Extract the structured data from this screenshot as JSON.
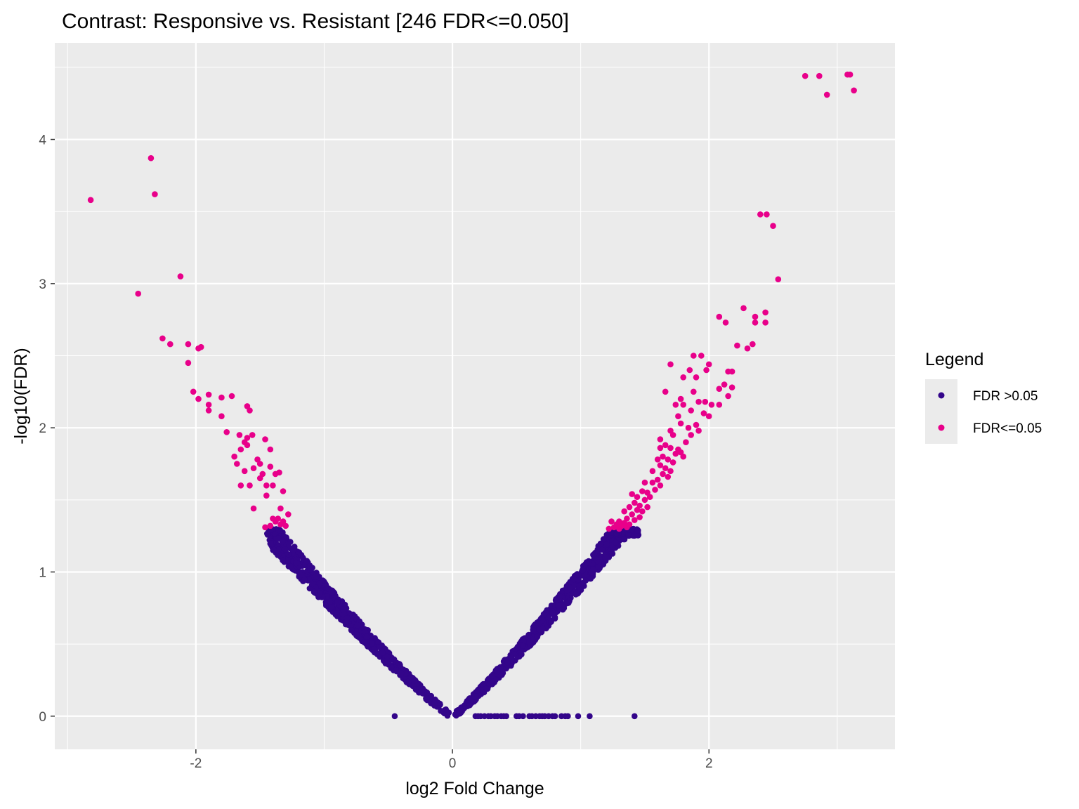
{
  "chart_data": {
    "type": "scatter",
    "title": "Contrast: Responsive vs. Resistant  [246 FDR<=0.050]",
    "xlabel": "log2 Fold Change",
    "ylabel": "-log10(FDR)",
    "xlim": [
      -3.1,
      3.45
    ],
    "ylim": [
      -0.23,
      4.67
    ],
    "x_ticks": [
      -2,
      0,
      2
    ],
    "x_tick_labels": [
      "-2",
      "0",
      "2"
    ],
    "y_ticks": [
      0,
      1,
      2,
      3,
      4
    ],
    "y_tick_labels": [
      "0",
      "1",
      "2",
      "3",
      "4"
    ],
    "grid": true,
    "legend": {
      "title": "Legend",
      "position": "right",
      "entries": [
        {
          "label": "FDR >0.05",
          "color": "#33058a"
        },
        {
          "label": "FDR<=0.05",
          "color": "#e8008a"
        }
      ]
    },
    "series": [
      {
        "name": "FDR >0.05",
        "color": "#33058a",
        "curve": {
          "description": "non-significant genes forming the lower V; y approx proportional to |x|^1.15, jittered",
          "left_x_range": [
            -1.45,
            -0.02
          ],
          "right_x_range": [
            0.02,
            1.45
          ],
          "y_max": 1.3
        },
        "points": [
          {
            "x": -0.45,
            "y": 0
          },
          {
            "x": 0.18,
            "y": 0
          },
          {
            "x": 0.2,
            "y": 0
          },
          {
            "x": 0.22,
            "y": 0
          },
          {
            "x": 0.25,
            "y": 0
          },
          {
            "x": 0.28,
            "y": 0
          },
          {
            "x": 0.3,
            "y": 0
          },
          {
            "x": 0.33,
            "y": 0
          },
          {
            "x": 0.35,
            "y": 0
          },
          {
            "x": 0.38,
            "y": 0
          },
          {
            "x": 0.4,
            "y": 0
          },
          {
            "x": 0.42,
            "y": 0
          },
          {
            "x": 0.5,
            "y": 0
          },
          {
            "x": 0.52,
            "y": 0
          },
          {
            "x": 0.55,
            "y": 0
          },
          {
            "x": 0.6,
            "y": 0
          },
          {
            "x": 0.62,
            "y": 0
          },
          {
            "x": 0.65,
            "y": 0
          },
          {
            "x": 0.68,
            "y": 0
          },
          {
            "x": 0.7,
            "y": 0
          },
          {
            "x": 0.72,
            "y": 0
          },
          {
            "x": 0.75,
            "y": 0
          },
          {
            "x": 0.78,
            "y": 0
          },
          {
            "x": 0.8,
            "y": 0
          },
          {
            "x": 0.85,
            "y": 0
          },
          {
            "x": 0.88,
            "y": 0
          },
          {
            "x": 0.9,
            "y": 0
          },
          {
            "x": 0.98,
            "y": 0
          },
          {
            "x": 1.07,
            "y": 0
          },
          {
            "x": 1.42,
            "y": 0
          }
        ]
      },
      {
        "name": "FDR<=0.05",
        "color": "#e8008a",
        "points": [
          {
            "x": -2.82,
            "y": 3.58
          },
          {
            "x": -2.35,
            "y": 3.87
          },
          {
            "x": -2.32,
            "y": 3.62
          },
          {
            "x": -2.12,
            "y": 3.05
          },
          {
            "x": -2.45,
            "y": 2.93
          },
          {
            "x": -2.26,
            "y": 2.62
          },
          {
            "x": -2.2,
            "y": 2.58
          },
          {
            "x": -2.06,
            "y": 2.58
          },
          {
            "x": -1.98,
            "y": 2.55
          },
          {
            "x": -1.96,
            "y": 2.56
          },
          {
            "x": -2.06,
            "y": 2.45
          },
          {
            "x": -2.02,
            "y": 2.25
          },
          {
            "x": -1.98,
            "y": 2.2
          },
          {
            "x": -1.9,
            "y": 2.23
          },
          {
            "x": -1.9,
            "y": 2.16
          },
          {
            "x": -1.9,
            "y": 2.12
          },
          {
            "x": -1.8,
            "y": 2.21
          },
          {
            "x": -1.8,
            "y": 2.08
          },
          {
            "x": -1.72,
            "y": 2.22
          },
          {
            "x": -1.6,
            "y": 2.15
          },
          {
            "x": -1.58,
            "y": 2.12
          },
          {
            "x": -1.76,
            "y": 1.97
          },
          {
            "x": -1.66,
            "y": 1.95
          },
          {
            "x": -1.62,
            "y": 1.9
          },
          {
            "x": -1.6,
            "y": 1.93
          },
          {
            "x": -1.56,
            "y": 1.95
          },
          {
            "x": -1.65,
            "y": 1.85
          },
          {
            "x": -1.6,
            "y": 1.88
          },
          {
            "x": -1.52,
            "y": 1.78
          },
          {
            "x": -1.46,
            "y": 1.92
          },
          {
            "x": -1.42,
            "y": 1.85
          },
          {
            "x": -1.7,
            "y": 1.8
          },
          {
            "x": -1.68,
            "y": 1.75
          },
          {
            "x": -1.62,
            "y": 1.7
          },
          {
            "x": -1.55,
            "y": 1.72
          },
          {
            "x": -1.5,
            "y": 1.75
          },
          {
            "x": -1.48,
            "y": 1.68
          },
          {
            "x": -1.42,
            "y": 1.73
          },
          {
            "x": -1.38,
            "y": 1.68
          },
          {
            "x": -1.35,
            "y": 1.69
          },
          {
            "x": -1.65,
            "y": 1.6
          },
          {
            "x": -1.58,
            "y": 1.6
          },
          {
            "x": -1.5,
            "y": 1.65
          },
          {
            "x": -1.45,
            "y": 1.6
          },
          {
            "x": -1.4,
            "y": 1.6
          },
          {
            "x": -1.32,
            "y": 1.56
          },
          {
            "x": -1.45,
            "y": 1.53
          },
          {
            "x": -1.55,
            "y": 1.44
          },
          {
            "x": -1.34,
            "y": 1.44
          },
          {
            "x": -1.28,
            "y": 1.4
          },
          {
            "x": -1.4,
            "y": 1.37
          },
          {
            "x": -1.38,
            "y": 1.35
          },
          {
            "x": -1.36,
            "y": 1.37
          },
          {
            "x": -1.34,
            "y": 1.33
          },
          {
            "x": -1.32,
            "y": 1.35
          },
          {
            "x": -1.3,
            "y": 1.32
          },
          {
            "x": -1.46,
            "y": 1.31
          },
          {
            "x": -1.42,
            "y": 1.32
          },
          {
            "x": 2.75,
            "y": 4.44
          },
          {
            "x": 2.86,
            "y": 4.44
          },
          {
            "x": 3.08,
            "y": 4.45
          },
          {
            "x": 3.1,
            "y": 4.45
          },
          {
            "x": 2.92,
            "y": 4.31
          },
          {
            "x": 3.13,
            "y": 4.34
          },
          {
            "x": 2.4,
            "y": 3.48
          },
          {
            "x": 2.45,
            "y": 3.48
          },
          {
            "x": 2.5,
            "y": 3.4
          },
          {
            "x": 2.54,
            "y": 3.03
          },
          {
            "x": 2.27,
            "y": 2.83
          },
          {
            "x": 2.44,
            "y": 2.8
          },
          {
            "x": 2.36,
            "y": 2.77
          },
          {
            "x": 2.36,
            "y": 2.73
          },
          {
            "x": 2.44,
            "y": 2.73
          },
          {
            "x": 2.08,
            "y": 2.77
          },
          {
            "x": 2.13,
            "y": 2.73
          },
          {
            "x": 2.34,
            "y": 2.58
          },
          {
            "x": 2.22,
            "y": 2.57
          },
          {
            "x": 2.3,
            "y": 2.55
          },
          {
            "x": 1.88,
            "y": 2.5
          },
          {
            "x": 1.94,
            "y": 2.5
          },
          {
            "x": 1.7,
            "y": 2.44
          },
          {
            "x": 2.0,
            "y": 2.44
          },
          {
            "x": 1.85,
            "y": 2.4
          },
          {
            "x": 1.98,
            "y": 2.4
          },
          {
            "x": 2.15,
            "y": 2.39
          },
          {
            "x": 2.18,
            "y": 2.39
          },
          {
            "x": 1.8,
            "y": 2.35
          },
          {
            "x": 1.9,
            "y": 2.35
          },
          {
            "x": 2.12,
            "y": 2.3
          },
          {
            "x": 1.66,
            "y": 2.25
          },
          {
            "x": 1.88,
            "y": 2.25
          },
          {
            "x": 1.78,
            "y": 2.2
          },
          {
            "x": 2.08,
            "y": 2.27
          },
          {
            "x": 2.15,
            "y": 2.22
          },
          {
            "x": 2.18,
            "y": 2.28
          },
          {
            "x": 1.74,
            "y": 2.16
          },
          {
            "x": 1.8,
            "y": 2.16
          },
          {
            "x": 1.92,
            "y": 2.18
          },
          {
            "x": 1.97,
            "y": 2.18
          },
          {
            "x": 2.02,
            "y": 2.16
          },
          {
            "x": 2.08,
            "y": 2.16
          },
          {
            "x": 1.86,
            "y": 2.12
          },
          {
            "x": 1.76,
            "y": 2.08
          },
          {
            "x": 1.96,
            "y": 2.1
          },
          {
            "x": 2.0,
            "y": 2.08
          },
          {
            "x": 1.78,
            "y": 2.03
          },
          {
            "x": 1.84,
            "y": 2.0
          },
          {
            "x": 1.9,
            "y": 2.02
          },
          {
            "x": 1.92,
            "y": 1.98
          },
          {
            "x": 1.86,
            "y": 1.95
          },
          {
            "x": 1.72,
            "y": 1.95
          },
          {
            "x": 1.62,
            "y": 1.92
          },
          {
            "x": 1.82,
            "y": 1.9
          },
          {
            "x": 1.66,
            "y": 1.88
          },
          {
            "x": 1.7,
            "y": 1.86
          },
          {
            "x": 1.76,
            "y": 1.85
          },
          {
            "x": 1.78,
            "y": 1.83
          },
          {
            "x": 1.74,
            "y": 1.82
          },
          {
            "x": 1.8,
            "y": 1.8
          },
          {
            "x": 1.64,
            "y": 1.8
          },
          {
            "x": 1.68,
            "y": 1.78
          },
          {
            "x": 1.72,
            "y": 1.76
          },
          {
            "x": 1.62,
            "y": 1.74
          },
          {
            "x": 1.66,
            "y": 1.72
          },
          {
            "x": 1.7,
            "y": 1.7
          },
          {
            "x": 1.64,
            "y": 1.68
          },
          {
            "x": 1.68,
            "y": 1.66
          },
          {
            "x": 1.6,
            "y": 1.64
          },
          {
            "x": 1.56,
            "y": 1.62
          },
          {
            "x": 1.62,
            "y": 1.6
          },
          {
            "x": 1.58,
            "y": 1.57
          },
          {
            "x": 1.48,
            "y": 1.56
          },
          {
            "x": 1.52,
            "y": 1.55
          },
          {
            "x": 1.54,
            "y": 1.52
          },
          {
            "x": 1.4,
            "y": 1.54
          },
          {
            "x": 1.44,
            "y": 1.52
          },
          {
            "x": 1.5,
            "y": 1.5
          },
          {
            "x": 1.42,
            "y": 1.48
          },
          {
            "x": 1.46,
            "y": 1.46
          },
          {
            "x": 1.52,
            "y": 1.45
          },
          {
            "x": 1.38,
            "y": 1.45
          },
          {
            "x": 1.44,
            "y": 1.43
          },
          {
            "x": 1.48,
            "y": 1.42
          },
          {
            "x": 1.34,
            "y": 1.42
          },
          {
            "x": 1.4,
            "y": 1.4
          },
          {
            "x": 1.46,
            "y": 1.38
          },
          {
            "x": 1.36,
            "y": 1.37
          },
          {
            "x": 1.42,
            "y": 1.36
          },
          {
            "x": 1.3,
            "y": 1.35
          },
          {
            "x": 1.34,
            "y": 1.34
          },
          {
            "x": 1.38,
            "y": 1.33
          },
          {
            "x": 1.28,
            "y": 1.33
          },
          {
            "x": 1.32,
            "y": 1.32
          },
          {
            "x": 1.36,
            "y": 1.31
          },
          {
            "x": 1.26,
            "y": 1.31
          },
          {
            "x": 1.3,
            "y": 1.3
          },
          {
            "x": 1.22,
            "y": 1.3
          },
          {
            "x": 1.24,
            "y": 1.35
          },
          {
            "x": 1.5,
            "y": 1.62
          },
          {
            "x": 1.56,
            "y": 1.7
          },
          {
            "x": 1.6,
            "y": 1.78
          },
          {
            "x": 1.62,
            "y": 1.86
          },
          {
            "x": 1.7,
            "y": 1.98
          }
        ]
      }
    ]
  }
}
